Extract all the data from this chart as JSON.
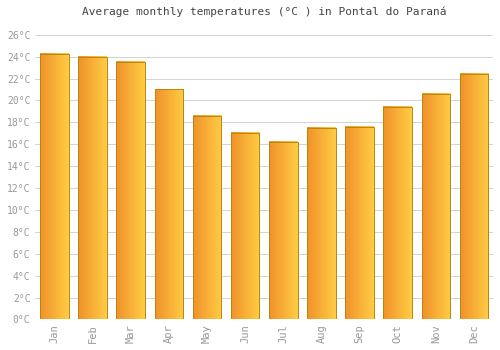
{
  "title": "Average monthly temperatures (°C ) in Pontal do Paraná",
  "months": [
    "Jan",
    "Feb",
    "Mar",
    "Apr",
    "May",
    "Jun",
    "Jul",
    "Aug",
    "Sep",
    "Oct",
    "Nov",
    "Dec"
  ],
  "values": [
    24.2,
    24.0,
    23.5,
    21.0,
    18.6,
    17.0,
    16.2,
    17.5,
    17.6,
    19.4,
    20.6,
    22.4
  ],
  "bar_color_left": "#F0922A",
  "bar_color_right": "#FFCC44",
  "bar_edge_color": "#B8860B",
  "background_color": "#ffffff",
  "grid_color": "#cccccc",
  "tick_label_color": "#999999",
  "title_color": "#444444",
  "ylim": [
    0,
    27
  ],
  "yticks": [
    0,
    2,
    4,
    6,
    8,
    10,
    12,
    14,
    16,
    18,
    20,
    22,
    24,
    26
  ],
  "ytick_labels": [
    "0°C",
    "2°C",
    "4°C",
    "6°C",
    "8°C",
    "10°C",
    "12°C",
    "14°C",
    "16°C",
    "18°C",
    "20°C",
    "22°C",
    "24°C",
    "26°C"
  ],
  "bar_width": 0.75,
  "figsize": [
    5.0,
    3.5
  ],
  "dpi": 100
}
